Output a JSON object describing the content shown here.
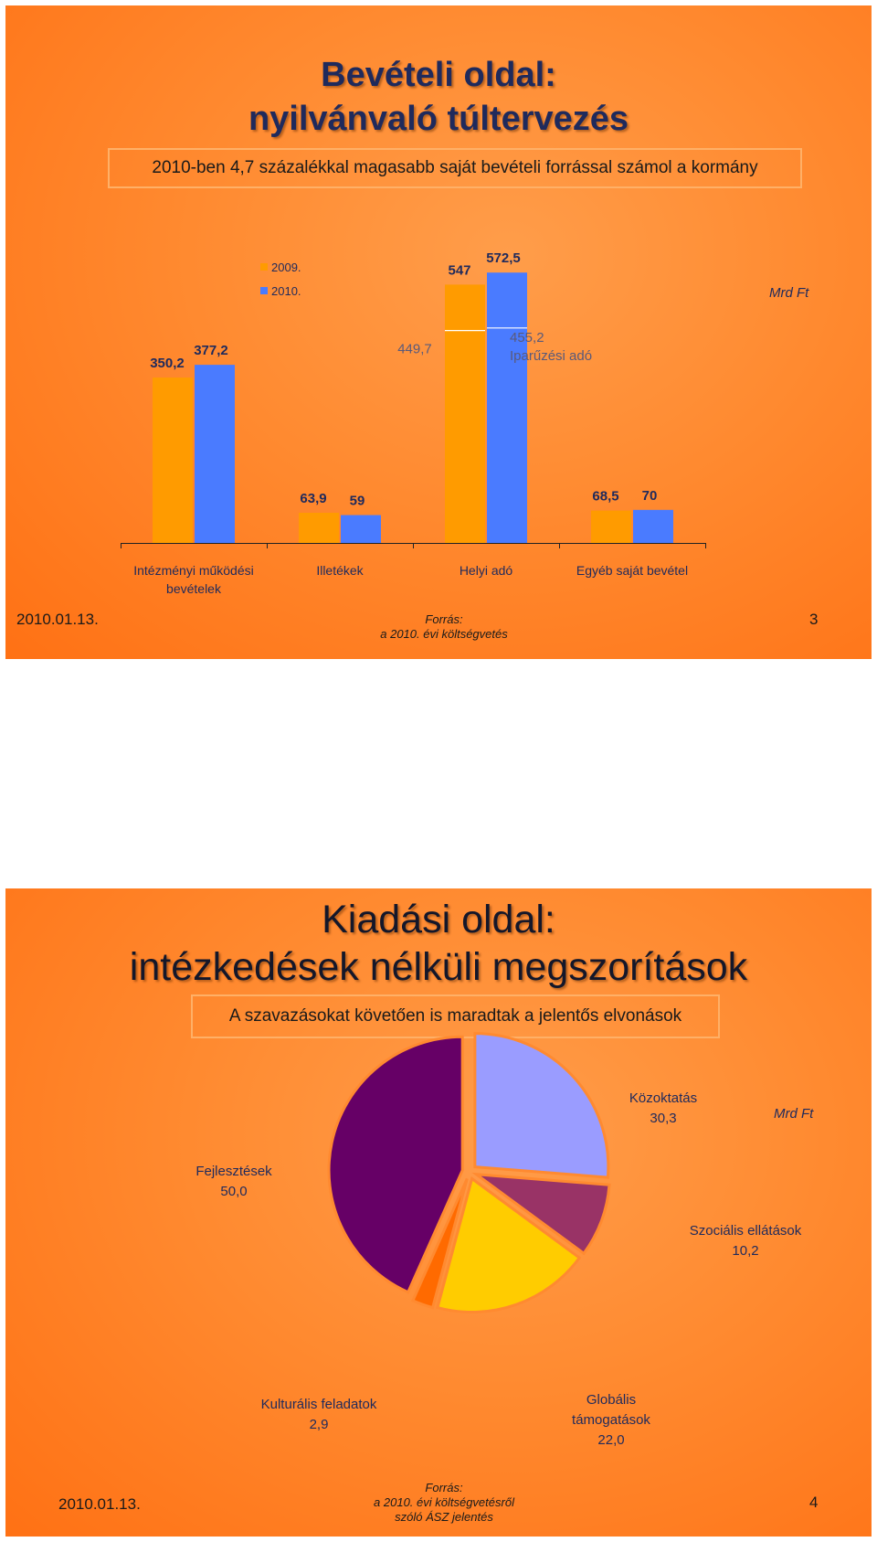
{
  "slide1": {
    "title_line1": "Bevételi oldal:",
    "title_line2": "nyilvánvaló túltervezés",
    "subtitle": "2010-ben 4,7 százalékkal magasabb saját bevételi forrással számol a kormány",
    "unit": "Mrd Ft",
    "date": "2010.01.13.",
    "source_line1": "Forrás:",
    "source_line2": "a 2010. évi költségvetés",
    "page_number": "3"
  },
  "slide2": {
    "title_line1": "Kiadási oldal:",
    "title_line2": "intézkedések nélküli megszorítások",
    "subtitle": "A szavazásokat követően is maradtak a jelentős elvonások",
    "unit": "Mrd Ft",
    "date": "2010.01.13.",
    "source_line1": "Forrás:",
    "source_line2": "a 2010. évi költségvetésről",
    "source_line3": "szóló ÁSZ jelentés",
    "page_number": "4"
  },
  "chart_data": [
    {
      "type": "bar",
      "categories": [
        "Intézményi működési bevételek",
        "Illetékek",
        "Helyi adó",
        "Egyéb saját bevétel"
      ],
      "series": [
        {
          "name": "2009.",
          "values": [
            350.2,
            63.9,
            547,
            68.5
          ],
          "color": "#ff9b00"
        },
        {
          "name": "2010.",
          "values": [
            377.2,
            59,
            572.5,
            70
          ],
          "color": "#4a7bff"
        }
      ],
      "value_labels": [
        [
          "350,2",
          "63,9",
          "547",
          "68,5"
        ],
        [
          "377,2",
          "59",
          "572,5",
          "70"
        ]
      ],
      "annotations": [
        {
          "text": "449,7",
          "category": "Helyi adó",
          "series": "2009.",
          "value": 449.7
        },
        {
          "text": "455,2",
          "category": "Helyi adó",
          "series": "2010.",
          "value": 455.2
        },
        {
          "text": "Iparűzési adó",
          "category": "Helyi adó",
          "series": "2010."
        }
      ],
      "unit": "Mrd Ft",
      "legend_position": "top-left",
      "ylim": [
        0,
        600
      ],
      "grid": false
    },
    {
      "type": "pie",
      "slices": [
        {
          "label": "Közoktatás",
          "value": 30.3,
          "value_label": "30,3",
          "color": "#9a9cff"
        },
        {
          "label": "Szociális ellátások",
          "value": 10.2,
          "value_label": "10,2",
          "color": "#993366"
        },
        {
          "label": "Globális támogatások",
          "value": 22.0,
          "value_label": "22,0",
          "color": "#ffcc00"
        },
        {
          "label": "Kulturális feladatok",
          "value": 2.9,
          "value_label": "2,9",
          "color": "#ff6a00"
        },
        {
          "label": "Fejlesztések",
          "value": 50.0,
          "value_label": "50,0",
          "color": "#660066"
        }
      ],
      "unit": "Mrd Ft",
      "start_angle_deg": 0,
      "direction": "clockwise"
    }
  ]
}
